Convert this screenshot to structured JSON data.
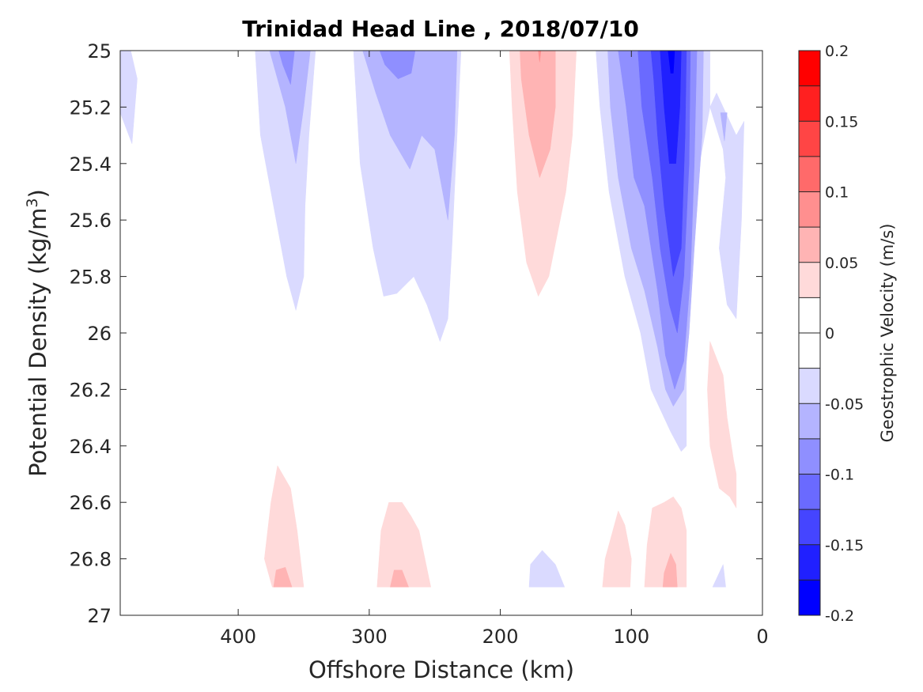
{
  "chart_data": {
    "type": "contourf",
    "title": "Trinidad Head Line , 2018/07/10",
    "xlabel": "Offshore Distance (km)",
    "ylabel_main": "Potential Density (kg/m",
    "ylabel_sup": "3",
    "ylabel_close": ")",
    "colorbar_label": "Geostrophic Velocity (m/s)",
    "xlim": [
      490,
      0
    ],
    "ylim": [
      25,
      27
    ],
    "x_reversed": true,
    "y_reversed": true,
    "xticks": [
      400,
      300,
      200,
      100,
      0
    ],
    "xtick_labels": [
      "400",
      "300",
      "200",
      "100",
      "0"
    ],
    "yticks": [
      25,
      25.2,
      25.4,
      25.6,
      25.8,
      26,
      26.2,
      26.4,
      26.6,
      26.8,
      27
    ],
    "ytick_labels": [
      "25",
      "25.2",
      "25.4",
      "25.6",
      "25.8",
      "26",
      "26.2",
      "26.4",
      "26.6",
      "26.8",
      "27"
    ],
    "colorbar": {
      "clim": [
        -0.2,
        0.2
      ],
      "levels": [
        -0.2,
        -0.175,
        -0.15,
        -0.125,
        -0.1,
        -0.075,
        -0.05,
        -0.025,
        0,
        0.025,
        0.05,
        0.075,
        0.1,
        0.125,
        0.15,
        0.175,
        0.2
      ],
      "colors": [
        "#0000ff",
        "#2020ff",
        "#4545ff",
        "#6a6aff",
        "#8f8fff",
        "#b4b4ff",
        "#dadaff",
        "#ffffff",
        "#ffffff",
        "#ffdada",
        "#ffb4b4",
        "#ff8f8f",
        "#ff6a6a",
        "#ff4545",
        "#ff2020",
        "#ff0000"
      ],
      "ticks": [
        0.2,
        0.15,
        0.1,
        0.05,
        0,
        -0.05,
        -0.1,
        -0.15,
        -0.2
      ],
      "tick_labels": [
        "0.2",
        "0.15",
        "0.1",
        "0.05",
        "0",
        "-0.05",
        "-0.1",
        "-0.15",
        "-0.2"
      ]
    },
    "regions": [
      {
        "name": "neg-west-edge",
        "level": -0.025,
        "color": "#dadaff",
        "points": [
          [
            490,
            25
          ],
          [
            482,
            25
          ],
          [
            477,
            25.1
          ],
          [
            481,
            25.33
          ],
          [
            490,
            25.22
          ]
        ]
      },
      {
        "name": "neg-380km-lv1",
        "level": -0.025,
        "color": "#dadaff",
        "points": [
          [
            387,
            25
          ],
          [
            341,
            25
          ],
          [
            346,
            25.3
          ],
          [
            349,
            25.55
          ],
          [
            350,
            25.8
          ],
          [
            356,
            25.92
          ],
          [
            363,
            25.8
          ],
          [
            371,
            25.6
          ],
          [
            383,
            25.3
          ]
        ]
      },
      {
        "name": "neg-380km-lv2",
        "level": -0.05,
        "color": "#b4b4ff",
        "points": [
          [
            376,
            25
          ],
          [
            345,
            25
          ],
          [
            350,
            25.2
          ],
          [
            356,
            25.4
          ],
          [
            364,
            25.2
          ],
          [
            373,
            25.05
          ]
        ]
      },
      {
        "name": "neg-380km-lv3",
        "level": -0.075,
        "color": "#8f8fff",
        "points": [
          [
            369,
            25
          ],
          [
            357,
            25
          ],
          [
            360,
            25.12
          ],
          [
            366,
            25.05
          ]
        ]
      },
      {
        "name": "neg-270km-lv1",
        "level": -0.025,
        "color": "#dadaff",
        "points": [
          [
            312,
            25
          ],
          [
            230,
            25
          ],
          [
            233,
            25.3
          ],
          [
            237,
            25.7
          ],
          [
            240,
            25.95
          ],
          [
            246,
            26.03
          ],
          [
            256,
            25.9
          ],
          [
            266,
            25.8
          ],
          [
            279,
            25.86
          ],
          [
            289,
            25.87
          ],
          [
            297,
            25.7
          ],
          [
            307,
            25.4
          ]
        ]
      },
      {
        "name": "neg-270km-lv2",
        "level": -0.05,
        "color": "#b4b4ff",
        "points": [
          [
            305,
            25
          ],
          [
            233,
            25
          ],
          [
            235,
            25.3
          ],
          [
            240,
            25.6
          ],
          [
            250,
            25.35
          ],
          [
            260,
            25.3
          ],
          [
            269,
            25.42
          ],
          [
            284,
            25.3
          ],
          [
            295,
            25.15
          ]
        ]
      },
      {
        "name": "neg-270km-lv3",
        "level": -0.075,
        "color": "#8f8fff",
        "points": [
          [
            292,
            25
          ],
          [
            265,
            25
          ],
          [
            268,
            25.08
          ],
          [
            278,
            25.1
          ],
          [
            288,
            25.05
          ]
        ]
      },
      {
        "name": "pos-180km-lv1",
        "level": 0.025,
        "color": "#ffdada",
        "points": [
          [
            193,
            25
          ],
          [
            142,
            25
          ],
          [
            145,
            25.3
          ],
          [
            150,
            25.5
          ],
          [
            163,
            25.8
          ],
          [
            171,
            25.87
          ],
          [
            180,
            25.75
          ],
          [
            187,
            25.5
          ],
          [
            191,
            25.2
          ]
        ]
      },
      {
        "name": "pos-180km-lv2",
        "level": 0.05,
        "color": "#ffb4b4",
        "points": [
          [
            185,
            25
          ],
          [
            158,
            25
          ],
          [
            158,
            25.2
          ],
          [
            162,
            25.35
          ],
          [
            170,
            25.45
          ],
          [
            178,
            25.3
          ],
          [
            184,
            25.1
          ]
        ]
      },
      {
        "name": "pos-180km-lv3",
        "level": 0.075,
        "color": "#ff8f8f",
        "points": [
          [
            171,
            25
          ],
          [
            169,
            25
          ],
          [
            170,
            25.04
          ]
        ]
      },
      {
        "name": "neg-70km-lv1",
        "level": -0.025,
        "color": "#dadaff",
        "points": [
          [
            127,
            25
          ],
          [
            40,
            25
          ],
          [
            40,
            25.2
          ],
          [
            56,
            25.6
          ],
          [
            58,
            26
          ],
          [
            58,
            26.4
          ],
          [
            62,
            26.42
          ],
          [
            70,
            26.35
          ],
          [
            85,
            26.2
          ],
          [
            93,
            26.0
          ],
          [
            105,
            25.8
          ],
          [
            117,
            25.5
          ],
          [
            124,
            25.2
          ]
        ]
      },
      {
        "name": "neg-70km-lv2",
        "level": -0.05,
        "color": "#b4b4ff",
        "points": [
          [
            118,
            25
          ],
          [
            45,
            25
          ],
          [
            46,
            25.3
          ],
          [
            52,
            25.7
          ],
          [
            56,
            26.0
          ],
          [
            60,
            26.2
          ],
          [
            68,
            26.26
          ],
          [
            74,
            26.2
          ],
          [
            80,
            26.05
          ],
          [
            90,
            25.85
          ],
          [
            100,
            25.7
          ],
          [
            110,
            25.45
          ],
          [
            116,
            25.2
          ]
        ]
      },
      {
        "name": "neg-70km-lv3",
        "level": -0.075,
        "color": "#8f8fff",
        "points": [
          [
            110,
            25
          ],
          [
            50,
            25
          ],
          [
            52,
            25.4
          ],
          [
            55,
            25.8
          ],
          [
            60,
            26.1
          ],
          [
            67,
            26.2
          ],
          [
            74,
            26.08
          ],
          [
            80,
            25.85
          ],
          [
            90,
            25.55
          ],
          [
            98,
            25.45
          ],
          [
            104,
            25.2
          ]
        ]
      },
      {
        "name": "neg-70km-lv4",
        "level": -0.1,
        "color": "#6a6aff",
        "points": [
          [
            95,
            25
          ],
          [
            55,
            25
          ],
          [
            56,
            25.4
          ],
          [
            60,
            25.8
          ],
          [
            65,
            26.0
          ],
          [
            71,
            25.9
          ],
          [
            78,
            25.7
          ],
          [
            84,
            25.45
          ],
          [
            92,
            25.2
          ]
        ]
      },
      {
        "name": "neg-70km-lv5",
        "level": -0.125,
        "color": "#4545ff",
        "points": [
          [
            85,
            25
          ],
          [
            58,
            25
          ],
          [
            59,
            25.3
          ],
          [
            62,
            25.7
          ],
          [
            68,
            25.8
          ],
          [
            75,
            25.55
          ],
          [
            80,
            25.3
          ],
          [
            83,
            25.1
          ]
        ]
      },
      {
        "name": "neg-70km-lv6",
        "level": -0.15,
        "color": "#2020ff",
        "points": [
          [
            78,
            25
          ],
          [
            62,
            25
          ],
          [
            63,
            25.2
          ],
          [
            66,
            25.4
          ],
          [
            71,
            25.4
          ],
          [
            75,
            25.2
          ]
        ]
      },
      {
        "name": "neg-70km-lv7",
        "level": -0.175,
        "color": "#0000ff",
        "points": [
          [
            72,
            25
          ],
          [
            67,
            25
          ],
          [
            68,
            25.08
          ],
          [
            70,
            25.08
          ]
        ]
      },
      {
        "name": "neg-east-lv1",
        "level": -0.025,
        "color": "#dadaff",
        "points": [
          [
            40,
            25.2
          ],
          [
            30,
            25.35
          ],
          [
            28,
            25.45
          ],
          [
            33,
            25.7
          ],
          [
            27,
            25.9
          ],
          [
            20,
            25.95
          ],
          [
            16,
            25.6
          ],
          [
            14,
            25.25
          ],
          [
            20,
            25.3
          ],
          [
            25,
            25.25
          ],
          [
            35,
            25.15
          ]
        ]
      },
      {
        "name": "neg-east-lv2",
        "level": -0.05,
        "color": "#b4b4ff",
        "points": [
          [
            32,
            25.22
          ],
          [
            27,
            25.22
          ],
          [
            29,
            25.32
          ]
        ]
      },
      {
        "name": "pos-east-lv1",
        "level": 0.025,
        "color": "#ffdada",
        "points": [
          [
            40,
            26.03
          ],
          [
            30,
            26.15
          ],
          [
            27,
            26.3
          ],
          [
            22,
            26.45
          ],
          [
            20,
            26.5
          ],
          [
            20,
            26.62
          ],
          [
            25,
            26.58
          ],
          [
            33,
            26.55
          ],
          [
            40,
            26.4
          ],
          [
            42,
            26.2
          ]
        ]
      },
      {
        "name": "pos-370km-lv1",
        "level": 0.025,
        "color": "#ffdada",
        "points": [
          [
            370,
            26.47
          ],
          [
            375,
            26.6
          ],
          [
            380,
            26.8
          ],
          [
            374,
            26.9
          ],
          [
            350,
            26.9
          ],
          [
            355,
            26.7
          ],
          [
            360,
            26.55
          ]
        ]
      },
      {
        "name": "pos-370km-lv2",
        "level": 0.05,
        "color": "#ffb4b4",
        "points": [
          [
            373,
            26.9
          ],
          [
            359,
            26.9
          ],
          [
            364,
            26.83
          ],
          [
            371,
            26.84
          ]
        ]
      },
      {
        "name": "pos-275km-lv1",
        "level": 0.025,
        "color": "#ffdada",
        "points": [
          [
            275,
            26.6
          ],
          [
            285,
            26.6
          ],
          [
            291,
            26.7
          ],
          [
            294,
            26.9
          ],
          [
            253,
            26.9
          ],
          [
            262,
            26.7
          ],
          [
            268,
            26.65
          ]
        ]
      },
      {
        "name": "pos-275km-lv2",
        "level": 0.05,
        "color": "#ffb4b4",
        "points": [
          [
            284,
            26.9
          ],
          [
            270,
            26.9
          ],
          [
            275,
            26.84
          ],
          [
            281,
            26.84
          ]
        ]
      },
      {
        "name": "neg-165km",
        "level": -0.025,
        "color": "#dadaff",
        "points": [
          [
            168,
            26.77
          ],
          [
            177,
            26.82
          ],
          [
            178,
            26.9
          ],
          [
            151,
            26.9
          ],
          [
            158,
            26.82
          ]
        ]
      },
      {
        "name": "pos-110km",
        "level": 0.025,
        "color": "#ffdada",
        "points": [
          [
            110,
            26.63
          ],
          [
            120,
            26.8
          ],
          [
            122,
            26.9
          ],
          [
            101,
            26.9
          ],
          [
            100,
            26.8
          ],
          [
            105,
            26.68
          ]
        ]
      },
      {
        "name": "pos-75km-lv1",
        "level": 0.025,
        "color": "#ffdada",
        "points": [
          [
            75,
            26.6
          ],
          [
            84,
            26.62
          ],
          [
            88,
            26.75
          ],
          [
            90,
            26.9
          ],
          [
            58,
            26.9
          ],
          [
            58,
            26.7
          ],
          [
            62,
            26.62
          ],
          [
            68,
            26.58
          ]
        ]
      },
      {
        "name": "pos-75km-lv2",
        "level": 0.05,
        "color": "#ffb4b4",
        "points": [
          [
            70,
            26.78
          ],
          [
            75,
            26.85
          ],
          [
            76,
            26.9
          ],
          [
            65,
            26.9
          ],
          [
            66,
            26.82
          ]
        ]
      },
      {
        "name": "neg-30km",
        "level": -0.025,
        "color": "#dadaff",
        "points": [
          [
            30,
            26.82
          ],
          [
            38,
            26.9
          ],
          [
            28,
            26.9
          ]
        ]
      }
    ]
  }
}
